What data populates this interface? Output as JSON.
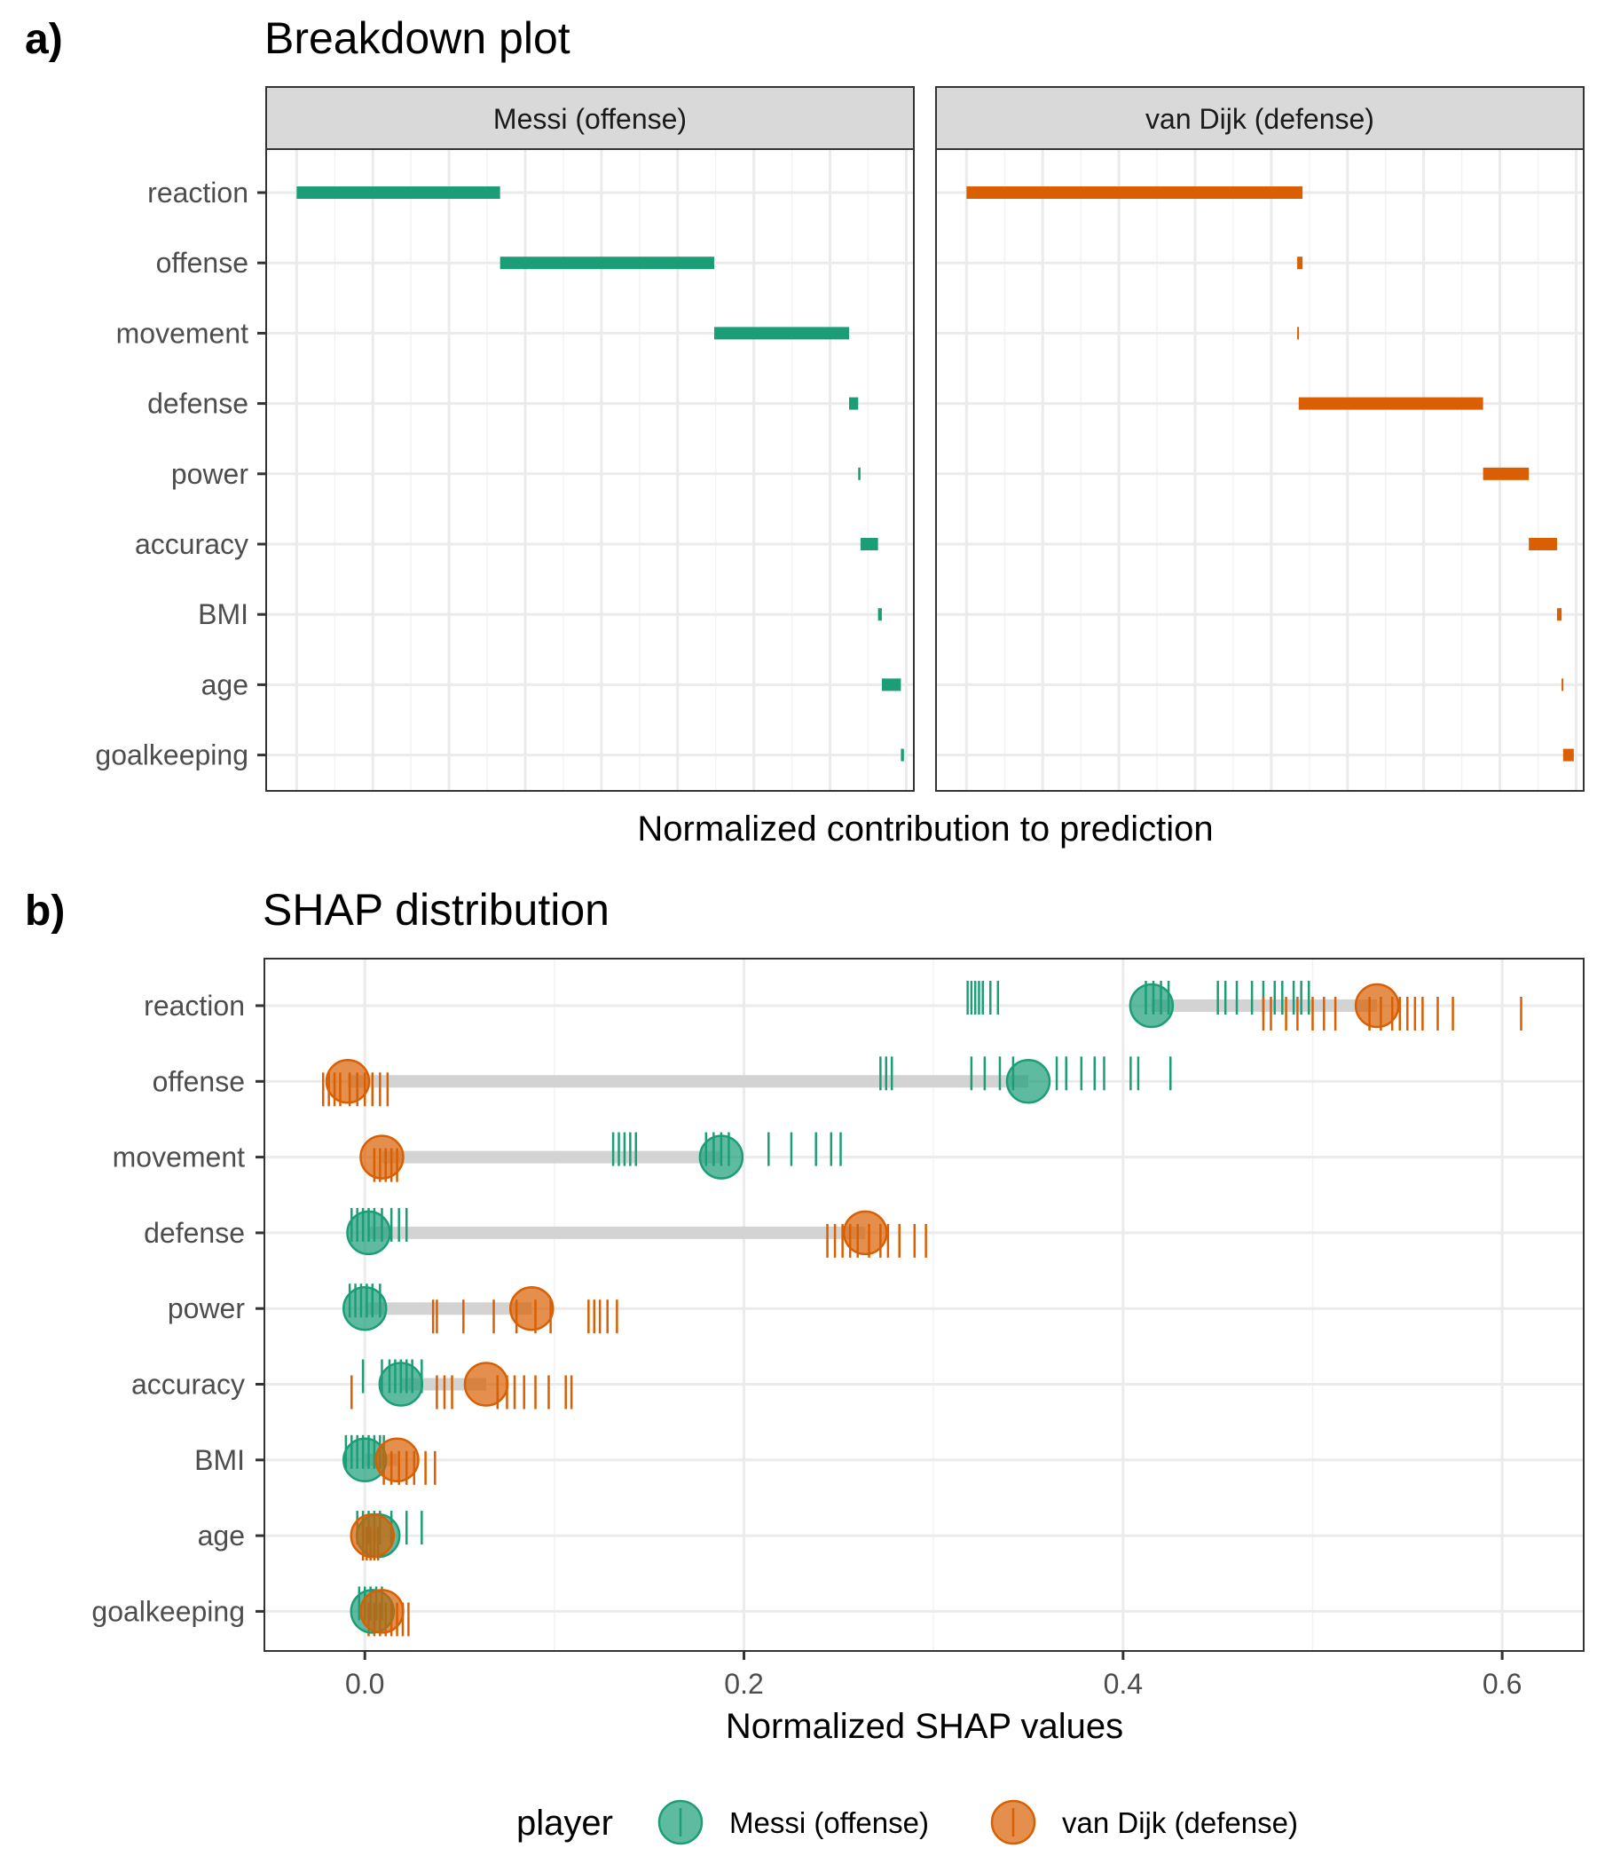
{
  "figure": {
    "panel_a": {
      "letter": "a)",
      "title": "Breakdown plot",
      "xlabel": "Normalized contribution to prediction"
    },
    "panel_b": {
      "letter": "b)",
      "title": "SHAP distribution",
      "xlabel": "Normalized SHAP values"
    },
    "legend": {
      "title": "player",
      "entries": [
        "Messi (offense)",
        "van Dijk (defense)"
      ]
    }
  },
  "colors": {
    "messi": "#1b9e77",
    "vandijk": "#d95f02",
    "connector": "#d3d3d3",
    "grid": "#ebebeb",
    "strip_fill": "#d9d9d9",
    "panel_border": "#333333"
  },
  "chart_data": [
    {
      "type": "bar",
      "subtype": "breakdown-waterfall",
      "title": "Breakdown plot",
      "xlabel": "Normalized contribution to prediction",
      "ylabel": "",
      "x_tick_labels_shown": false,
      "grid": true,
      "xlim": [
        -0.04,
        0.81
      ],
      "categories": [
        "reaction",
        "offense",
        "movement",
        "defense",
        "power",
        "accuracy",
        "BMI",
        "age",
        "goalkeeping"
      ],
      "facets": [
        {
          "name": "Messi (offense)",
          "color_key": "messi",
          "segments": [
            {
              "feature": "reaction",
              "start": 0.0,
              "end": 0.267
            },
            {
              "feature": "offense",
              "start": 0.267,
              "end": 0.548
            },
            {
              "feature": "movement",
              "start": 0.548,
              "end": 0.725
            },
            {
              "feature": "defense",
              "start": 0.725,
              "end": 0.737
            },
            {
              "feature": "power",
              "start": 0.737,
              "end": 0.74
            },
            {
              "feature": "accuracy",
              "start": 0.74,
              "end": 0.763
            },
            {
              "feature": "BMI",
              "start": 0.763,
              "end": 0.768
            },
            {
              "feature": "age",
              "start": 0.768,
              "end": 0.793
            },
            {
              "feature": "goalkeeping",
              "start": 0.793,
              "end": 0.797
            }
          ]
        },
        {
          "name": "van Dijk (defense)",
          "color_key": "vandijk",
          "segments": [
            {
              "feature": "reaction",
              "start": 0.0,
              "end": 0.441
            },
            {
              "feature": "offense",
              "start": 0.441,
              "end": 0.434
            },
            {
              "feature": "movement",
              "start": 0.434,
              "end": 0.436
            },
            {
              "feature": "defense",
              "start": 0.436,
              "end": 0.678
            },
            {
              "feature": "power",
              "start": 0.678,
              "end": 0.738
            },
            {
              "feature": "accuracy",
              "start": 0.738,
              "end": 0.775
            },
            {
              "feature": "BMI",
              "start": 0.775,
              "end": 0.781
            },
            {
              "feature": "age",
              "start": 0.781,
              "end": 0.783
            },
            {
              "feature": "goalkeeping",
              "start": 0.783,
              "end": 0.797
            }
          ]
        }
      ]
    },
    {
      "type": "scatter",
      "subtype": "dumbbell-with-rug",
      "title": "SHAP distribution",
      "xlabel": "Normalized SHAP values",
      "ylabel": "",
      "xlim": [
        -0.053,
        0.643
      ],
      "x_ticks": [
        0.0,
        0.2,
        0.4,
        0.6
      ],
      "x_tick_labels": [
        "0.0",
        "0.2",
        "0.4",
        "0.6"
      ],
      "grid": true,
      "categories": [
        "reaction",
        "offense",
        "movement",
        "defense",
        "power",
        "accuracy",
        "BMI",
        "age",
        "goalkeeping"
      ],
      "series": [
        {
          "name": "Messi (offense)",
          "color_key": "messi",
          "values": [
            0.415,
            0.35,
            0.188,
            0.002,
            0.0,
            0.019,
            0.0,
            0.007,
            0.004
          ],
          "rug": [
            [
              0.318,
              0.32,
              0.322,
              0.324,
              0.326,
              0.33,
              0.334,
              0.412,
              0.416,
              0.42,
              0.424,
              0.45,
              0.454,
              0.46,
              0.468,
              0.474,
              0.48,
              0.484,
              0.49,
              0.494,
              0.498
            ],
            [
              0.272,
              0.275,
              0.278,
              0.32,
              0.327,
              0.335,
              0.342,
              0.365,
              0.37,
              0.378,
              0.385,
              0.39,
              0.404,
              0.408,
              0.425
            ],
            [
              0.131,
              0.134,
              0.137,
              0.14,
              0.143,
              0.18,
              0.184,
              0.188,
              0.192,
              0.213,
              0.225,
              0.238,
              0.246,
              0.251
            ],
            [
              -0.007,
              -0.004,
              -0.001,
              0.002,
              0.005,
              0.009,
              0.014,
              0.018,
              0.022
            ],
            [
              -0.008,
              -0.005,
              -0.002,
              0.001,
              0.004,
              0.008
            ],
            [
              -0.001,
              0.009,
              0.013,
              0.016,
              0.019,
              0.022,
              0.025,
              0.03
            ],
            [
              -0.01,
              -0.007,
              -0.004,
              -0.001,
              0.002,
              0.005,
              0.008,
              0.01
            ],
            [
              -0.004,
              -0.001,
              0.002,
              0.005,
              0.008,
              0.014,
              0.022,
              0.03
            ],
            [
              -0.003,
              0.0,
              0.003,
              0.006,
              0.009
            ]
          ]
        },
        {
          "name": "van Dijk (defense)",
          "color_key": "vandijk",
          "values": [
            0.534,
            -0.009,
            0.009,
            0.264,
            0.088,
            0.064,
            0.017,
            0.004,
            0.009
          ],
          "rug": [
            [
              0.474,
              0.478,
              0.486,
              0.492,
              0.5,
              0.506,
              0.512,
              0.53,
              0.536,
              0.542,
              0.546,
              0.55,
              0.554,
              0.558,
              0.566,
              0.574,
              0.61
            ],
            [
              -0.022,
              -0.019,
              -0.016,
              -0.013,
              -0.008,
              -0.004,
              0.0,
              0.004,
              0.008,
              0.012
            ],
            [
              0.005,
              0.008,
              0.011,
              0.014,
              0.017
            ],
            [
              0.244,
              0.248,
              0.252,
              0.256,
              0.26,
              0.266,
              0.272,
              0.276,
              0.282,
              0.29,
              0.296
            ],
            [
              0.036,
              0.038,
              0.052,
              0.068,
              0.08,
              0.09,
              0.098,
              0.118,
              0.121,
              0.124,
              0.128,
              0.133
            ],
            [
              -0.007,
              0.038,
              0.042,
              0.046,
              0.07,
              0.075,
              0.079,
              0.084,
              0.09,
              0.097,
              0.106,
              0.109
            ],
            [
              0.01,
              0.014,
              0.018,
              0.022,
              0.026,
              0.032,
              0.037
            ],
            [
              -0.001,
              0.001,
              0.003,
              0.005,
              0.007
            ],
            [
              0.002,
              0.005,
              0.008,
              0.011,
              0.014,
              0.017,
              0.02,
              0.023
            ]
          ]
        }
      ]
    }
  ]
}
